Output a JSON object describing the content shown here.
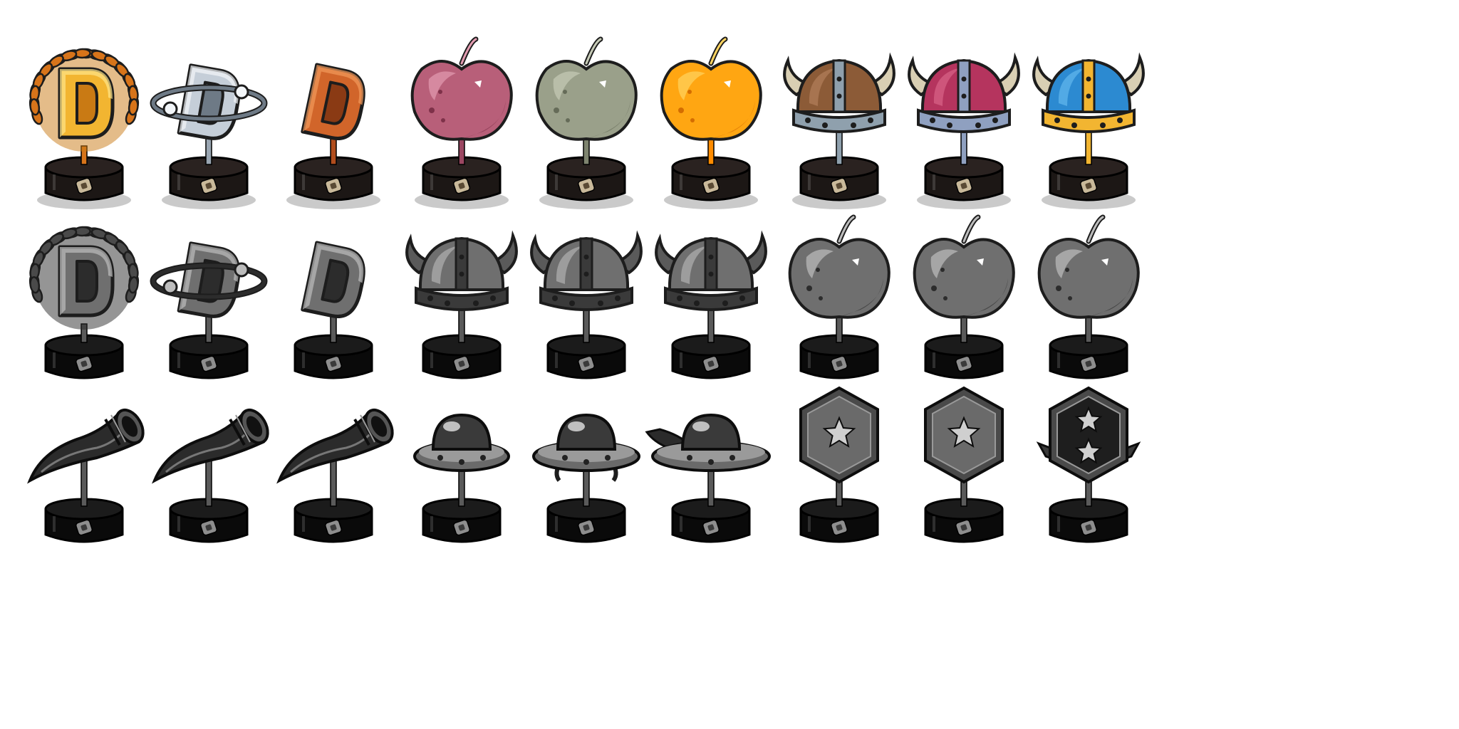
{
  "palette": {
    "pedestal_locked": "#0a0a0a",
    "pedestal_unlocked": "#2a2220",
    "plate": "#c9b99a",
    "locked_dark": "#2c2c2c",
    "locked_mid": "#6f6f6f",
    "locked_light": "#bdbdbd"
  },
  "rows": [
    {
      "state": "unlocked",
      "items": [
        {
          "icon": "laurel-d-trophy-icon",
          "colors": {
            "main": "#f2b531",
            "dark": "#c97a14",
            "light": "#ffe58a",
            "accent": "#d7741a"
          }
        },
        {
          "icon": "ringed-d-trophy-icon",
          "colors": {
            "main": "#c5ced8",
            "dark": "#6e7a86",
            "light": "#f3f6f9",
            "accent": "#9aa6b2"
          }
        },
        {
          "icon": "plain-d-trophy-icon",
          "colors": {
            "main": "#d1652a",
            "dark": "#8a3a14",
            "light": "#f29a5b",
            "accent": "#b14d1d"
          }
        },
        {
          "icon": "apple-trophy-icon",
          "colors": {
            "main": "#b85f79",
            "dark": "#7e3149",
            "light": "#e29bb0",
            "accent": "#9b4762"
          }
        },
        {
          "icon": "apple-trophy-icon",
          "colors": {
            "main": "#9aa08a",
            "dark": "#656b58",
            "light": "#c6cbb7",
            "accent": "#7e846f"
          }
        },
        {
          "icon": "apple-trophy-icon",
          "colors": {
            "main": "#ffa612",
            "dark": "#d46d00",
            "light": "#ffd460",
            "accent": "#ff8c00"
          }
        },
        {
          "icon": "viking-helmet-trophy-icon",
          "colors": {
            "main": "#8c5b37",
            "dark": "#5a3720",
            "light": "#b98660",
            "accent": "#8fa0ad"
          }
        },
        {
          "icon": "viking-helmet-trophy-icon",
          "colors": {
            "main": "#b5345e",
            "dark": "#7a1f3e",
            "light": "#e06c90",
            "accent": "#8fa0c0"
          }
        },
        {
          "icon": "viking-helmet-trophy-icon",
          "colors": {
            "main": "#2c8ad1",
            "dark": "#1a5a8f",
            "light": "#6cc0f2",
            "accent": "#f2b531"
          }
        }
      ]
    },
    {
      "state": "locked",
      "items": [
        {
          "icon": "laurel-d-trophy-icon"
        },
        {
          "icon": "ringed-d-trophy-icon"
        },
        {
          "icon": "plain-d-trophy-icon"
        },
        {
          "icon": "viking-helmet-trophy-icon"
        },
        {
          "icon": "viking-helmet-trophy-icon"
        },
        {
          "icon": "viking-helmet-trophy-icon"
        },
        {
          "icon": "apple-trophy-icon"
        },
        {
          "icon": "apple-trophy-icon"
        },
        {
          "icon": "apple-trophy-icon"
        }
      ]
    },
    {
      "state": "locked",
      "items": [
        {
          "icon": "horn-trophy-icon"
        },
        {
          "icon": "horn-trophy-icon"
        },
        {
          "icon": "horn-trophy-icon"
        },
        {
          "icon": "ufo-trophy-icon"
        },
        {
          "icon": "ufo-trophy-icon"
        },
        {
          "icon": "ufo-trophy-icon"
        },
        {
          "icon": "one-star-badge-trophy-icon"
        },
        {
          "icon": "one-star-badge-trophy-icon"
        },
        {
          "icon": "two-star-badge-trophy-icon"
        }
      ]
    }
  ]
}
